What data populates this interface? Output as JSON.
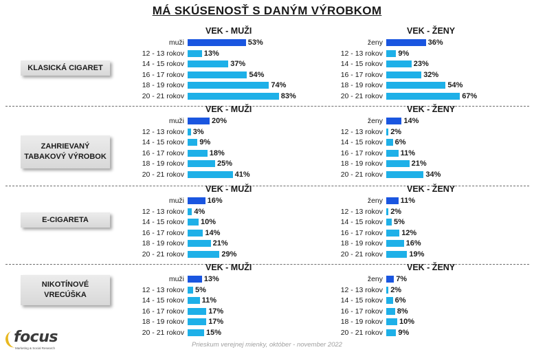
{
  "title": "MÁ SKÚSENOSŤ S DANÝM VÝROBKOM",
  "footer": "Prieskum verejnej mienky, október - november 2022",
  "logo": {
    "text": "focus",
    "subtitle": "Marketing & Social Research"
  },
  "colors": {
    "total_bar": "#1a56e0",
    "age_bar": "#1eb0e8",
    "box_bg": "#dcdcdc"
  },
  "chart_data": [
    {
      "type": "bar",
      "category": "KLASICKÁ CIGARET",
      "panels": [
        {
          "title": "VEK - MUŽI",
          "rows": [
            {
              "label": "muži",
              "value": 53,
              "total": true
            },
            {
              "label": "12 - 13 rokov",
              "value": 13
            },
            {
              "label": "14 - 15 rokov",
              "value": 37
            },
            {
              "label": "16 - 17 rokov",
              "value": 54
            },
            {
              "label": "18 - 19 rokov",
              "value": 74
            },
            {
              "label": "20 - 21 rokov",
              "value": 83
            }
          ]
        },
        {
          "title": "VEK - ŽENY",
          "rows": [
            {
              "label": "ženy",
              "value": 36,
              "total": true
            },
            {
              "label": "12 - 13 rokov",
              "value": 9
            },
            {
              "label": "14 - 15 rokov",
              "value": 23
            },
            {
              "label": "16 - 17 rokov",
              "value": 32
            },
            {
              "label": "18 - 19 rokov",
              "value": 54
            },
            {
              "label": "20 - 21 rokov",
              "value": 67
            }
          ]
        }
      ]
    },
    {
      "type": "bar",
      "category": "ZAHRIEVANÝ\nTABAKOVÝ VÝROBOK",
      "panels": [
        {
          "title": "VEK - MUŽI",
          "rows": [
            {
              "label": "muži",
              "value": 20,
              "total": true
            },
            {
              "label": "12 - 13 rokov",
              "value": 3
            },
            {
              "label": "14 - 15 rokov",
              "value": 9
            },
            {
              "label": "16 - 17 rokov",
              "value": 18
            },
            {
              "label": "18 - 19 rokov",
              "value": 25
            },
            {
              "label": "20 - 21 rokov",
              "value": 41
            }
          ]
        },
        {
          "title": "VEK - ŽENY",
          "rows": [
            {
              "label": "ženy",
              "value": 14,
              "total": true
            },
            {
              "label": "12 - 13 rokov",
              "value": 2
            },
            {
              "label": "14 - 15 rokov",
              "value": 6
            },
            {
              "label": "16 - 17 rokov",
              "value": 11
            },
            {
              "label": "18 - 19 rokov",
              "value": 21
            },
            {
              "label": "20 - 21 rokov",
              "value": 34
            }
          ]
        }
      ]
    },
    {
      "type": "bar",
      "category": "E-CIGARETA",
      "panels": [
        {
          "title": "VEK - MUŽI",
          "rows": [
            {
              "label": "muži",
              "value": 16,
              "total": true
            },
            {
              "label": "12 - 13 rokov",
              "value": 4
            },
            {
              "label": "14 - 15 rokov",
              "value": 10
            },
            {
              "label": "16 - 17 rokov",
              "value": 14
            },
            {
              "label": "18 - 19 rokov",
              "value": 21
            },
            {
              "label": "20 - 21 rokov",
              "value": 29
            }
          ]
        },
        {
          "title": "VEK - ŽENY",
          "rows": [
            {
              "label": "ženy",
              "value": 11,
              "total": true
            },
            {
              "label": "12 - 13 rokov",
              "value": 2
            },
            {
              "label": "14 - 15 rokov",
              "value": 5
            },
            {
              "label": "16 - 17 rokov",
              "value": 12
            },
            {
              "label": "18 - 19 rokov",
              "value": 16
            },
            {
              "label": "20 - 21 rokov",
              "value": 19
            }
          ]
        }
      ]
    },
    {
      "type": "bar",
      "category": "NIKOTÍNOVÉ\nVRECÚŠKA",
      "panels": [
        {
          "title": "VEK - MUŽI",
          "rows": [
            {
              "label": "muži",
              "value": 13,
              "total": true
            },
            {
              "label": "12 - 13 rokov",
              "value": 5
            },
            {
              "label": "14 - 15 rokov",
              "value": 11
            },
            {
              "label": "16 - 17 rokov",
              "value": 17
            },
            {
              "label": "18 - 19 rokov",
              "value": 17
            },
            {
              "label": "20 - 21 rokov",
              "value": 15
            }
          ]
        },
        {
          "title": "VEK - ŽENY",
          "rows": [
            {
              "label": "ženy",
              "value": 7,
              "total": true
            },
            {
              "label": "12 - 13 rokov",
              "value": 2
            },
            {
              "label": "14 - 15 rokov",
              "value": 6
            },
            {
              "label": "16 - 17 rokov",
              "value": 8
            },
            {
              "label": "18 - 19 rokov",
              "value": 10
            },
            {
              "label": "20 - 21 rokov",
              "value": 9
            }
          ]
        }
      ]
    }
  ]
}
